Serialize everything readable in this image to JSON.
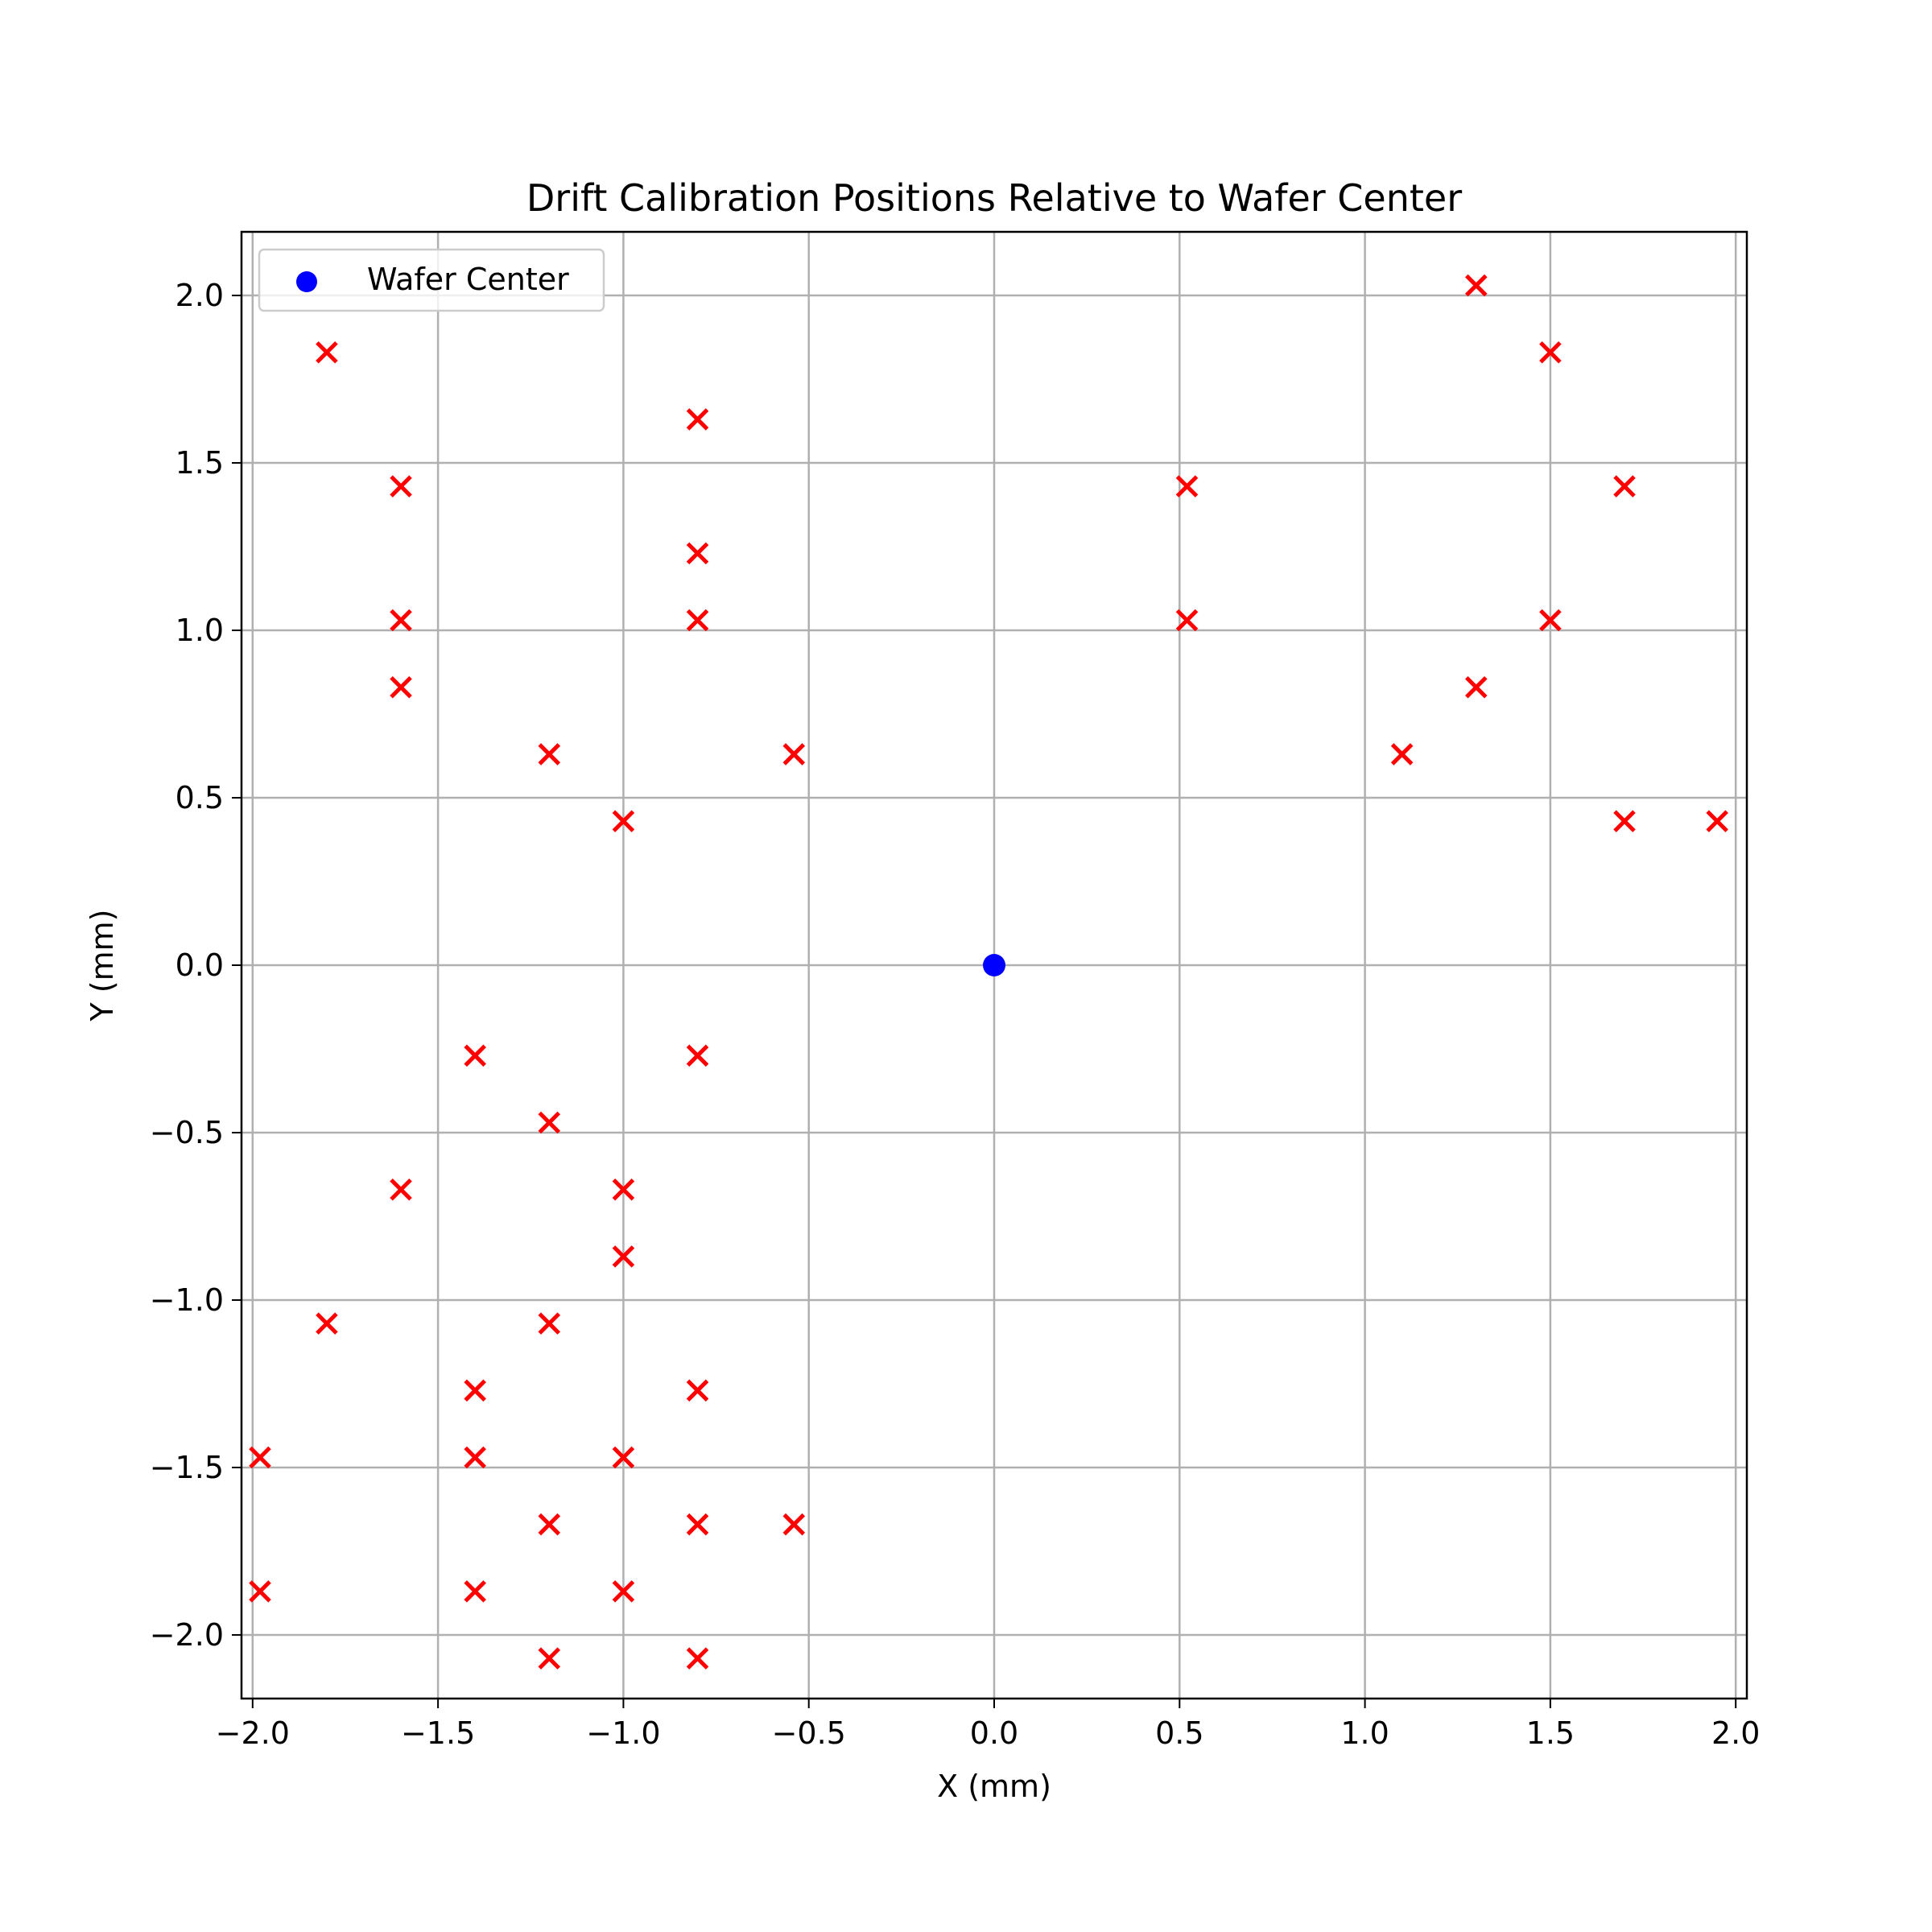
{
  "chart_data": {
    "type": "scatter",
    "title": "Drift Calibration Positions Relative to Wafer Center",
    "xlabel": "X (mm)",
    "ylabel": "Y (mm)",
    "xlim": [
      -2.03,
      2.03
    ],
    "ylim": [
      -2.19,
      2.19
    ],
    "xticks": [
      -2.0,
      -1.5,
      -1.0,
      -0.5,
      0.0,
      0.5,
      1.0,
      1.5,
      2.0
    ],
    "xtick_labels": [
      "−2.0",
      "−1.5",
      "−1.0",
      "−0.5",
      "0.0",
      "0.5",
      "1.0",
      "1.5",
      "2.0"
    ],
    "yticks": [
      -2.0,
      -1.5,
      -1.0,
      -0.5,
      0.0,
      0.5,
      1.0,
      1.5,
      2.0
    ],
    "ytick_labels": [
      "−2.0",
      "−1.5",
      "−1.0",
      "−0.5",
      "0.0",
      "0.5",
      "1.0",
      "1.5",
      "2.0"
    ],
    "grid": true,
    "legend": {
      "placement": "upper-left",
      "entries": [
        "Wafer Center"
      ]
    },
    "series": [
      {
        "name": "Wafer Center",
        "marker": "circle",
        "color": "#0000ff",
        "points": [
          [
            0.0,
            0.0
          ]
        ]
      },
      {
        "marker": "x",
        "color": "#ff0000",
        "points": [
          [
            -1.8,
            1.83
          ],
          [
            -1.6,
            1.43
          ],
          [
            -1.6,
            1.03
          ],
          [
            -1.6,
            0.83
          ],
          [
            -0.8,
            1.63
          ],
          [
            -0.8,
            1.23
          ],
          [
            -0.8,
            1.03
          ],
          [
            -1.2,
            0.63
          ],
          [
            -0.54,
            0.63
          ],
          [
            -1.0,
            0.43
          ],
          [
            1.3,
            2.03
          ],
          [
            1.5,
            1.83
          ],
          [
            1.7,
            1.43
          ],
          [
            1.5,
            1.03
          ],
          [
            1.3,
            0.83
          ],
          [
            1.1,
            0.63
          ],
          [
            1.7,
            0.43
          ],
          [
            1.95,
            0.43
          ],
          [
            0.52,
            1.43
          ],
          [
            0.52,
            1.03
          ],
          [
            -1.4,
            -0.27
          ],
          [
            -0.8,
            -0.27
          ],
          [
            -1.2,
            -0.47
          ],
          [
            -1.6,
            -0.67
          ],
          [
            -1.0,
            -0.67
          ],
          [
            -1.0,
            -0.87
          ],
          [
            -1.8,
            -1.07
          ],
          [
            -1.2,
            -1.07
          ],
          [
            -1.4,
            -1.27
          ],
          [
            -0.8,
            -1.27
          ],
          [
            -1.98,
            -1.47
          ],
          [
            -1.4,
            -1.47
          ],
          [
            -1.0,
            -1.47
          ],
          [
            -1.2,
            -1.67
          ],
          [
            -0.8,
            -1.67
          ],
          [
            -0.54,
            -1.67
          ],
          [
            -1.98,
            -1.87
          ],
          [
            -1.4,
            -1.87
          ],
          [
            -1.0,
            -1.87
          ],
          [
            -1.2,
            -2.07
          ],
          [
            -0.8,
            -2.07
          ]
        ]
      }
    ]
  }
}
